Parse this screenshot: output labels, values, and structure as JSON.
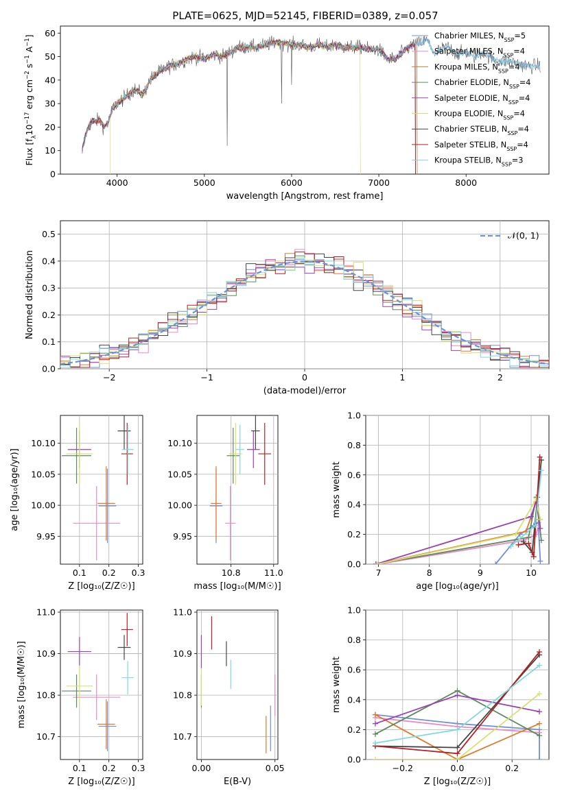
{
  "title": "PLATE=0625, MJD=52145, FIBERID=0389, z=0.057",
  "colors": {
    "chabrier_miles": "#6f8fd6",
    "salpeter_miles": "#e58bc5",
    "kroupa_miles": "#e07a2a",
    "chabrier_elodie": "#5b8a5b",
    "salpeter_elodie": "#9b3fb5",
    "kroupa_elodie": "#d8e070",
    "chabrier_stelib": "#444444",
    "salpeter_stelib": "#b51f1f",
    "kroupa_stelib": "#7fd8e0"
  },
  "legend_spec": [
    {
      "name": "Chabrier MILES",
      "nssp": "5",
      "color": "#6f8fd6"
    },
    {
      "name": "Salpeter MILES",
      "nssp": "4",
      "color": "#e58bc5"
    },
    {
      "name": "Kroupa MILES",
      "nssp": "4",
      "color": "#e07a2a"
    },
    {
      "name": "Chabrier ELODIE",
      "nssp": "4",
      "color": "#5b8a5b"
    },
    {
      "name": "Salpeter ELODIE",
      "nssp": "4",
      "color": "#9b3fb5"
    },
    {
      "name": "Kroupa ELODIE",
      "nssp": "4",
      "color": "#d8e070"
    },
    {
      "name": "Chabrier STELIB",
      "nssp": "4",
      "color": "#444444"
    },
    {
      "name": "Salpeter STELIB",
      "nssp": "4",
      "color": "#b51f1f"
    },
    {
      "name": "Kroupa STELIB",
      "nssp": "3",
      "color": "#7fd8e0"
    }
  ],
  "chart_data": [
    {
      "id": "spectrum",
      "type": "line",
      "xlabel": "wavelength [Angstrom, rest frame]",
      "ylabel_parts": [
        "Flux [f",
        "λ",
        "10",
        "−17",
        " erg cm",
        "−2",
        " s",
        "−1",
        " A",
        "−1",
        "]"
      ],
      "xlim": [
        3350,
        8950
      ],
      "ylim": [
        0,
        63
      ],
      "xticks": [
        4000,
        5000,
        6000,
        7000,
        8000
      ],
      "yticks": [
        0,
        10,
        20,
        30,
        40,
        50,
        60
      ],
      "profile": [
        [
          3600,
          10
        ],
        [
          3650,
          18
        ],
        [
          3700,
          22
        ],
        [
          3800,
          23
        ],
        [
          3850,
          20
        ],
        [
          3900,
          22
        ],
        [
          3950,
          28
        ],
        [
          4000,
          30
        ],
        [
          4100,
          33
        ],
        [
          4200,
          36
        ],
        [
          4300,
          34
        ],
        [
          4350,
          38
        ],
        [
          4400,
          41
        ],
        [
          4500,
          44
        ],
        [
          4600,
          46
        ],
        [
          4700,
          47
        ],
        [
          4800,
          49
        ],
        [
          4900,
          50
        ],
        [
          5000,
          49
        ],
        [
          5100,
          51
        ],
        [
          5200,
          50
        ],
        [
          5300,
          52
        ],
        [
          5400,
          54
        ],
        [
          5500,
          54
        ],
        [
          5600,
          54
        ],
        [
          5700,
          55
        ],
        [
          5800,
          56
        ],
        [
          5900,
          56
        ],
        [
          6000,
          55
        ],
        [
          6100,
          55
        ],
        [
          6200,
          54
        ],
        [
          6300,
          55
        ],
        [
          6400,
          54
        ],
        [
          6500,
          55
        ],
        [
          6600,
          54
        ],
        [
          6700,
          54
        ],
        [
          6800,
          54
        ],
        [
          6900,
          53
        ],
        [
          7000,
          53
        ],
        [
          7100,
          49
        ],
        [
          7200,
          49
        ],
        [
          7300,
          53
        ],
        [
          7400,
          55
        ],
        [
          7500,
          56
        ],
        [
          7550,
          57
        ],
        [
          7650,
          51
        ],
        [
          7700,
          53
        ],
        [
          7800,
          54
        ],
        [
          7900,
          51
        ],
        [
          8000,
          52
        ],
        [
          8100,
          50
        ],
        [
          8200,
          52
        ],
        [
          8300,
          49
        ],
        [
          8400,
          48
        ],
        [
          8500,
          48
        ],
        [
          8600,
          47
        ],
        [
          8700,
          46
        ],
        [
          8800,
          46
        ]
      ],
      "legend_placement": "right",
      "grid": false
    },
    {
      "id": "residuals",
      "type": "histogram",
      "xlabel": "(data-model)/error",
      "ylabel": "Normed distribution",
      "xlim": [
        -2.5,
        2.5
      ],
      "ylim": [
        0,
        0.55
      ],
      "xticks": [
        -2,
        -1,
        0,
        1,
        2
      ],
      "yticks": [
        0.0,
        0.1,
        0.2,
        0.3,
        0.4,
        0.5
      ],
      "xtick_labels": [
        "−2",
        "−1",
        "0",
        "1",
        "2"
      ],
      "bin_width": 0.1,
      "reference_curve": "N(0,1)",
      "legend": [
        "𝒩(0, 1)"
      ],
      "grid": true
    },
    {
      "id": "age_vs_Z",
      "type": "errorbar",
      "xlabel": "Z [log₁₀(Z/Z☉)]",
      "ylabel": "age  [log₁₀(age/yr)]",
      "xlim": [
        0.035,
        0.315
      ],
      "ylim": [
        9.905,
        10.145
      ],
      "xticks": [
        0.1,
        0.2,
        0.3
      ],
      "yticks": [
        9.95,
        10.0,
        10.05,
        10.1
      ],
      "points": [
        {
          "c": "#6f8fd6",
          "x": 0.195,
          "y": 9.999,
          "xe": 0.03,
          "ye": 0.06
        },
        {
          "c": "#e58bc5",
          "x": 0.158,
          "y": 9.971,
          "xe": 0.08,
          "ye": 0.06
        },
        {
          "c": "#e07a2a",
          "x": 0.191,
          "y": 10.003,
          "xe": 0.03,
          "ye": 0.06
        },
        {
          "c": "#5b8a5b",
          "x": 0.09,
          "y": 10.08,
          "xe": 0.05,
          "ye": 0.045
        },
        {
          "c": "#9b3fb5",
          "x": 0.1,
          "y": 10.09,
          "xe": 0.04,
          "ye": 0.03
        },
        {
          "c": "#d8e070",
          "x": 0.1,
          "y": 10.083,
          "xe": 0.045,
          "ye": 0.05
        },
        {
          "c": "#444444",
          "x": 0.252,
          "y": 10.12,
          "xe": 0.022,
          "ye": 0.03
        },
        {
          "c": "#b51f1f",
          "x": 0.262,
          "y": 10.083,
          "xe": 0.02,
          "ye": 0.05
        },
        {
          "c": "#7fd8e0",
          "x": 0.264,
          "y": 10.09,
          "xe": 0.02,
          "ye": 0.04
        }
      ]
    },
    {
      "id": "age_vs_mass",
      "type": "errorbar",
      "xlabel": "mass [log₁₀(M/M☉)]",
      "ylabel": "",
      "xlim": [
        10.64,
        11.02
      ],
      "ylim": [
        9.905,
        10.145
      ],
      "xticks": [
        10.8,
        11.0
      ],
      "yticks": [
        9.95,
        10.0,
        10.05,
        10.1
      ],
      "points": [
        {
          "c": "#6f8fd6",
          "x": 10.73,
          "y": 9.999,
          "xe": 0.03,
          "ye": 0.06
        },
        {
          "c": "#e58bc5",
          "x": 10.797,
          "y": 9.971,
          "xe": 0.025,
          "ye": 0.06
        },
        {
          "c": "#e07a2a",
          "x": 10.73,
          "y": 10.003,
          "xe": 0.025,
          "ye": 0.06
        },
        {
          "c": "#5b8a5b",
          "x": 10.81,
          "y": 10.08,
          "xe": 0.03,
          "ye": 0.045
        },
        {
          "c": "#9b3fb5",
          "x": 10.905,
          "y": 10.09,
          "xe": 0.03,
          "ye": 0.03
        },
        {
          "c": "#d8e070",
          "x": 10.822,
          "y": 10.083,
          "xe": 0.03,
          "ye": 0.05
        },
        {
          "c": "#444444",
          "x": 10.915,
          "y": 10.12,
          "xe": 0.02,
          "ye": 0.03
        },
        {
          "c": "#b51f1f",
          "x": 10.958,
          "y": 10.083,
          "xe": 0.03,
          "ye": 0.05
        },
        {
          "c": "#7fd8e0",
          "x": 10.842,
          "y": 10.09,
          "xe": 0.02,
          "ye": 0.04
        }
      ]
    },
    {
      "id": "mw_vs_age",
      "type": "line",
      "xlabel": "age  [log₁₀(age/yr)]",
      "ylabel": "mass weight",
      "xlim": [
        6.75,
        10.35
      ],
      "ylim": [
        0,
        1.0
      ],
      "xticks": [
        7,
        8,
        9,
        10
      ],
      "yticks": [
        0.0,
        0.2,
        0.4,
        0.6,
        0.8,
        1.0
      ],
      "series": [
        {
          "c": "#6f8fd6",
          "pts": [
            [
              9.3,
              0.0
            ],
            [
              9.78,
              0.2
            ],
            [
              10.05,
              0.26
            ],
            [
              10.14,
              0.28
            ],
            [
              10.18,
              0.02
            ]
          ]
        },
        {
          "c": "#e58bc5",
          "pts": [
            [
              7.0,
              0.0
            ],
            [
              9.85,
              0.16
            ],
            [
              10.1,
              0.2
            ],
            [
              10.18,
              0.3
            ]
          ]
        },
        {
          "c": "#e07a2a",
          "pts": [
            [
              6.95,
              0.0
            ],
            [
              9.9,
              0.22
            ],
            [
              10.1,
              0.42
            ],
            [
              10.15,
              0.3
            ]
          ]
        },
        {
          "c": "#5b8a5b",
          "pts": [
            [
              6.95,
              0.0
            ],
            [
              9.95,
              0.18
            ],
            [
              10.1,
              0.45
            ],
            [
              10.2,
              0.16
            ]
          ]
        },
        {
          "c": "#9b3fb5",
          "pts": [
            [
              6.95,
              0.0
            ],
            [
              10.0,
              0.32
            ],
            [
              10.12,
              0.45
            ],
            [
              10.18,
              0.24
            ]
          ]
        },
        {
          "c": "#d8e070",
          "pts": [
            [
              6.98,
              0.0
            ],
            [
              9.7,
              0.2
            ],
            [
              10.1,
              0.44
            ],
            [
              10.18,
              0.3
            ]
          ]
        },
        {
          "c": "#444444",
          "pts": [
            [
              9.85,
              0.15
            ],
            [
              10.02,
              0.08
            ],
            [
              10.2,
              0.7
            ]
          ]
        },
        {
          "c": "#b51f1f",
          "pts": [
            [
              9.75,
              0.13
            ],
            [
              9.95,
              0.14
            ],
            [
              10.05,
              0.05
            ],
            [
              10.17,
              0.72
            ]
          ]
        },
        {
          "c": "#7fd8e0",
          "pts": [
            [
              9.6,
              0.12
            ],
            [
              10.08,
              0.26
            ],
            [
              10.2,
              0.63
            ]
          ]
        }
      ]
    },
    {
      "id": "mass_vs_Z",
      "type": "errorbar",
      "xlabel": "Z [log₁₀(Z/Z☉)]",
      "ylabel": "mass [log₁₀(M/M☉)]",
      "xlim": [
        0.035,
        0.315
      ],
      "ylim": [
        10.645,
        11.005
      ],
      "xticks": [
        0.1,
        0.2,
        0.3
      ],
      "yticks": [
        10.7,
        10.8,
        10.9,
        11.0
      ],
      "points": [
        {
          "c": "#6f8fd6",
          "x": 0.195,
          "y": 10.725,
          "xe": 0.03,
          "ye": 0.06
        },
        {
          "c": "#e58bc5",
          "x": 0.158,
          "y": 10.795,
          "xe": 0.08,
          "ye": 0.055
        },
        {
          "c": "#e07a2a",
          "x": 0.191,
          "y": 10.73,
          "xe": 0.03,
          "ye": 0.06
        },
        {
          "c": "#5b8a5b",
          "x": 0.09,
          "y": 10.81,
          "xe": 0.05,
          "ye": 0.04
        },
        {
          "c": "#9b3fb5",
          "x": 0.1,
          "y": 10.905,
          "xe": 0.04,
          "ye": 0.035
        },
        {
          "c": "#d8e070",
          "x": 0.1,
          "y": 10.822,
          "xe": 0.045,
          "ye": 0.05
        },
        {
          "c": "#444444",
          "x": 0.252,
          "y": 10.915,
          "xe": 0.022,
          "ye": 0.03
        },
        {
          "c": "#b51f1f",
          "x": 0.262,
          "y": 10.958,
          "xe": 0.02,
          "ye": 0.04
        },
        {
          "c": "#7fd8e0",
          "x": 0.264,
          "y": 10.842,
          "xe": 0.02,
          "ye": 0.04
        }
      ]
    },
    {
      "id": "mass_vs_ebv",
      "type": "errorbar",
      "xlabel": "E(B-V)",
      "ylabel": "",
      "xlim": [
        -0.003,
        0.052
      ],
      "ylim": [
        10.645,
        11.005
      ],
      "xticks": [
        0.0,
        0.05
      ],
      "yticks": [
        10.7,
        10.8,
        10.9,
        11.0
      ],
      "xtick_labels": [
        "0.00",
        "0.05"
      ],
      "points": [
        {
          "c": "#6f8fd6",
          "x": 0.047,
          "y": 10.72,
          "xe": 0,
          "ye": 0.055
        },
        {
          "c": "#e58bc5",
          "x": 0.05,
          "y": 10.8,
          "xe": 0,
          "ye": 0.05
        },
        {
          "c": "#e07a2a",
          "x": 0.044,
          "y": 10.705,
          "xe": 0,
          "ye": 0.045
        },
        {
          "c": "#5b8a5b",
          "x": 0.0,
          "y": 10.81,
          "xe": 0,
          "ye": 0.04
        },
        {
          "c": "#9b3fb5",
          "x": 0.0,
          "y": 10.905,
          "xe": 0,
          "ye": 0.04
        },
        {
          "c": "#d8e070",
          "x": 0.0,
          "y": 10.82,
          "xe": 0,
          "ye": 0.045
        },
        {
          "c": "#444444",
          "x": 0.017,
          "y": 10.9,
          "xe": 0,
          "ye": 0.03
        },
        {
          "c": "#b51f1f",
          "x": 0.007,
          "y": 10.95,
          "xe": 0,
          "ye": 0.04
        },
        {
          "c": "#7fd8e0",
          "x": 0.02,
          "y": 10.85,
          "xe": 0,
          "ye": 0.035
        }
      ]
    },
    {
      "id": "mw_vs_Z",
      "type": "line",
      "xlabel": "Z [log₁₀(Z/Z☉)]",
      "ylabel": "mass weight",
      "xlim": [
        -0.335,
        0.335
      ],
      "ylim": [
        0,
        1.0
      ],
      "xticks": [
        -0.2,
        0.0,
        0.2
      ],
      "yticks": [
        0.0,
        0.2,
        0.4,
        0.6,
        0.8,
        1.0
      ],
      "xtick_labels": [
        "−0.2",
        "0.0",
        "0.2"
      ],
      "series": [
        {
          "c": "#6f8fd6",
          "pts": [
            [
              -0.3,
              0.3
            ],
            [
              0.0,
              0.24
            ],
            [
              0.3,
              0.2
            ],
            [
              0.3,
              0.0
            ]
          ]
        },
        {
          "c": "#e58bc5",
          "pts": [
            [
              -0.3,
              0.28
            ],
            [
              0.0,
              0.22
            ],
            [
              0.3,
              0.18
            ]
          ]
        },
        {
          "c": "#e07a2a",
          "pts": [
            [
              -0.3,
              0.3
            ],
            [
              0.0,
              0.0
            ],
            [
              0.3,
              0.24
            ]
          ]
        },
        {
          "c": "#5b8a5b",
          "pts": [
            [
              -0.3,
              0.17
            ],
            [
              0.0,
              0.46
            ],
            [
              0.3,
              0.16
            ]
          ]
        },
        {
          "c": "#9b3fb5",
          "pts": [
            [
              -0.3,
              0.24
            ],
            [
              0.0,
              0.43
            ],
            [
              0.3,
              0.32
            ]
          ]
        },
        {
          "c": "#d8e070",
          "pts": [
            [
              -0.3,
              0.0
            ],
            [
              0.0,
              0.0
            ],
            [
              0.3,
              0.44
            ]
          ]
        },
        {
          "c": "#444444",
          "pts": [
            [
              -0.3,
              0.09
            ],
            [
              0.0,
              0.08
            ],
            [
              0.3,
              0.7
            ]
          ]
        },
        {
          "c": "#b51f1f",
          "pts": [
            [
              -0.3,
              0.09
            ],
            [
              0.0,
              0.04
            ],
            [
              0.3,
              0.72
            ]
          ]
        },
        {
          "c": "#7fd8e0",
          "pts": [
            [
              -0.3,
              0.11
            ],
            [
              0.0,
              0.2
            ],
            [
              0.3,
              0.63
            ]
          ]
        }
      ]
    }
  ]
}
